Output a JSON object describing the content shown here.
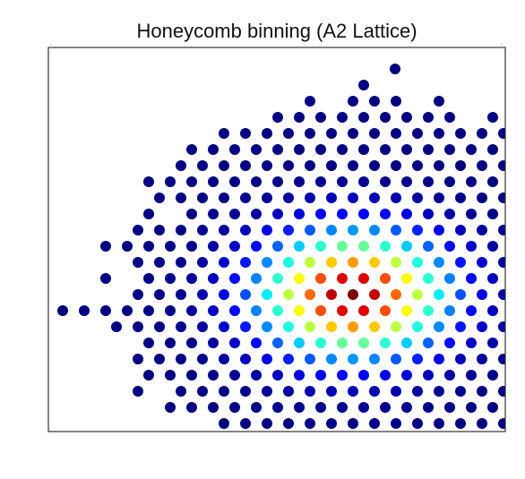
{
  "chart_data": {
    "type": "scatter",
    "title": "Honeycomb binning (A2 Lattice)",
    "xlabel": "",
    "ylabel": "",
    "grid": false,
    "legend": "none",
    "colormap": "jet",
    "axis_color": "#333333",
    "dot_color_stops": [
      "#000080",
      "#0000ff",
      "#0080ff",
      "#00ffff",
      "#80ff80",
      "#ffff00",
      "#ff8000",
      "#ff0000",
      "#800000"
    ],
    "rows": [
      {
        "y": 77,
        "x": [
          441
        ]
      },
      {
        "y": 95,
        "x": [
          406
        ]
      },
      {
        "y": 113,
        "x": [
          346,
          394,
          418,
          442,
          490
        ]
      },
      {
        "y": 131,
        "x": [
          310,
          334,
          358,
          382,
          406,
          430,
          454,
          478,
          502,
          550
        ]
      },
      {
        "y": 149,
        "x": [
          250,
          274,
          298,
          322,
          346,
          370,
          394,
          418,
          442,
          466,
          490,
          514,
          538,
          562
        ]
      },
      {
        "y": 167,
        "x": [
          214,
          238,
          262,
          286,
          310,
          334,
          358,
          382,
          406,
          430,
          454,
          478,
          502,
          526,
          550
        ]
      },
      {
        "y": 185,
        "x": [
          202,
          226,
          250,
          274,
          298,
          322,
          346,
          370,
          394,
          418,
          442,
          466,
          490,
          514,
          538,
          562
        ]
      },
      {
        "y": 203,
        "x": [
          166,
          190,
          214,
          238,
          262,
          286,
          310,
          334,
          358,
          382,
          406,
          430,
          454,
          478,
          502,
          526,
          550
        ]
      },
      {
        "y": 221,
        "x": [
          178,
          202,
          226,
          250,
          274,
          298,
          322,
          346,
          370,
          394,
          418,
          442,
          466,
          490,
          514,
          538,
          562
        ]
      },
      {
        "y": 239,
        "x": [
          166,
          214,
          238,
          262,
          286,
          310,
          334,
          358,
          382,
          406,
          430,
          454,
          478,
          502,
          526,
          550
        ]
      },
      {
        "y": 257,
        "x": [
          154,
          178,
          202,
          226,
          250,
          274,
          298,
          322,
          346,
          370,
          394,
          418,
          442,
          466,
          490,
          514,
          538,
          562
        ]
      },
      {
        "y": 275,
        "x": [
          118,
          142,
          166,
          190,
          214,
          238,
          262,
          286,
          310,
          334,
          358,
          382,
          406,
          430,
          454,
          478,
          502,
          526,
          550
        ]
      },
      {
        "y": 293,
        "x": [
          154,
          178,
          202,
          226,
          250,
          274,
          298,
          322,
          346,
          370,
          394,
          418,
          442,
          466,
          490,
          514,
          538,
          562
        ]
      },
      {
        "y": 311,
        "x": [
          118,
          166,
          190,
          214,
          238,
          262,
          286,
          310,
          334,
          358,
          382,
          406,
          430,
          454,
          478,
          502,
          526,
          550
        ]
      },
      {
        "y": 329,
        "x": [
          154,
          178,
          202,
          226,
          250,
          274,
          298,
          322,
          346,
          370,
          394,
          418,
          442,
          466,
          490,
          514,
          538,
          562
        ]
      },
      {
        "y": 347,
        "x": [
          70,
          94,
          118,
          142,
          166,
          190,
          214,
          238,
          262,
          286,
          310,
          334,
          358,
          382,
          406,
          430,
          454,
          478,
          502,
          526,
          550
        ]
      },
      {
        "y": 365,
        "x": [
          130,
          154,
          178,
          202,
          226,
          250,
          274,
          298,
          322,
          346,
          370,
          394,
          418,
          442,
          466,
          490,
          514,
          538,
          562
        ]
      },
      {
        "y": 383,
        "x": [
          166,
          190,
          214,
          238,
          262,
          286,
          310,
          334,
          358,
          382,
          406,
          430,
          454,
          478,
          502,
          526,
          550
        ]
      },
      {
        "y": 401,
        "x": [
          154,
          178,
          202,
          226,
          250,
          274,
          298,
          322,
          346,
          370,
          394,
          418,
          442,
          466,
          490,
          514,
          538,
          562
        ]
      },
      {
        "y": 419,
        "x": [
          166,
          190,
          214,
          238,
          262,
          286,
          310,
          334,
          358,
          382,
          406,
          430,
          454,
          478,
          502,
          526,
          550
        ]
      },
      {
        "y": 437,
        "x": [
          154,
          202,
          226,
          250,
          274,
          298,
          322,
          346,
          370,
          394,
          418,
          442,
          466,
          490,
          514,
          538,
          562
        ]
      },
      {
        "y": 455,
        "x": [
          190,
          214,
          238,
          262,
          286,
          310,
          334,
          358,
          382,
          406,
          430,
          454,
          478,
          502,
          526,
          550
        ]
      },
      {
        "y": 473,
        "x": [
          250,
          274,
          298,
          322,
          346,
          370,
          394,
          418,
          442,
          466,
          490,
          514,
          538,
          562
        ]
      }
    ],
    "density_center": [
      394,
      329
    ],
    "density_scale": [
      120,
      80
    ]
  }
}
